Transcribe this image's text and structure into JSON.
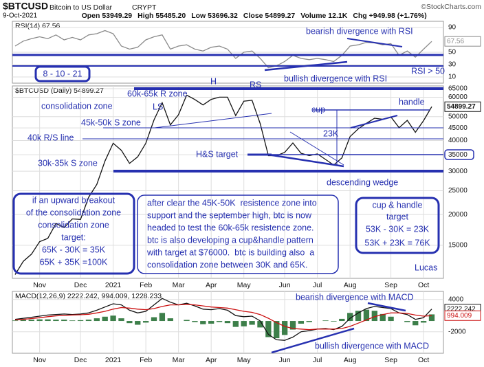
{
  "header": {
    "symbol": "$BTCUSD",
    "name": "Bitcoin to US Dollar",
    "exchange": "CRYPT",
    "source": "©StockCharts.com",
    "date": "9-Oct-2021",
    "quote": [
      "Open 53949.29",
      "High 55485.20",
      "Low 53696.32",
      "Close 54899.27",
      "Volume 12.1K",
      "Chg +949.98 (+1.76%)"
    ]
  },
  "chart_data": [
    {
      "type": "line",
      "title": "RSI(14) 67.56",
      "ylim": [
        0,
        100
      ],
      "yticks": [
        10,
        30,
        50,
        90
      ],
      "grid": true,
      "series": [
        {
          "name": "RSI(14)",
          "color": "#8a8a8a",
          "values": [
            60,
            68,
            72,
            75,
            72,
            78,
            70,
            74,
            70,
            78,
            80,
            85,
            80,
            60,
            55,
            58,
            70,
            75,
            78,
            55,
            60,
            62,
            55,
            52,
            58,
            60,
            55,
            40,
            50,
            52,
            40,
            25,
            28,
            35,
            45,
            40,
            38,
            40,
            38,
            35,
            45,
            60,
            62,
            66,
            65,
            62,
            64,
            45,
            52,
            42,
            55,
            67.56
          ]
        }
      ]
    },
    {
      "type": "line",
      "title": "$BTCUSD (Daily) 54899.27",
      "log_scale": true,
      "ylim": [
        11000,
        66700
      ],
      "yticks": [
        15000,
        20000,
        25000,
        30000,
        35000,
        40000,
        45000,
        50000,
        60000,
        65000
      ],
      "grid": true,
      "categories": [
        null,
        null,
        null,
        "Nov",
        null,
        null,
        null,
        null,
        "Dec",
        null,
        null,
        null,
        "2021",
        null,
        null,
        null,
        "Feb",
        null,
        null,
        null,
        "Mar",
        null,
        null,
        null,
        "Apr",
        null,
        null,
        null,
        "May",
        null,
        null,
        null,
        null,
        "Jun",
        null,
        null,
        null,
        "Jul",
        null,
        null,
        null,
        "Aug",
        null,
        null,
        null,
        null,
        "Sep",
        null,
        null,
        null,
        "Oct",
        null
      ],
      "series": [
        {
          "name": "$BTCUSD",
          "color": "#111111",
          "values": [
            11400,
            12900,
            13800,
            15500,
            16000,
            18400,
            17700,
            19200,
            19100,
            23500,
            26500,
            33000,
            39000,
            36500,
            32300,
            34300,
            39000,
            48500,
            57000,
            46300,
            50900,
            61200,
            58700,
            55800,
            58800,
            60000,
            60000,
            50500,
            57800,
            58300,
            46800,
            34700,
            34700,
            35800,
            39100,
            35500,
            34700,
            35300,
            33500,
            31800,
            34000,
            41500,
            44600,
            47000,
            49300,
            48800,
            49900,
            45100,
            48300,
            43200,
            48200,
            54899.27
          ]
        }
      ]
    },
    {
      "type": "line",
      "title": "MACD(12,26,9) 2222.242, 994.009, 1228.233",
      "ylim": [
        -6000,
        5500
      ],
      "yticks": [
        -2000,
        4000
      ],
      "grid": true,
      "categories": [
        null,
        null,
        null,
        "Nov",
        null,
        null,
        null,
        null,
        "Dec",
        null,
        null,
        null,
        "2021",
        null,
        null,
        null,
        "Feb",
        null,
        null,
        null,
        "Mar",
        null,
        null,
        null,
        "Apr",
        null,
        null,
        null,
        "May",
        null,
        null,
        null,
        null,
        "Jun",
        null,
        null,
        null,
        "Jul",
        null,
        null,
        null,
        "Aug",
        null,
        null,
        null,
        null,
        "Sep",
        null,
        null,
        null,
        "Oct",
        null
      ],
      "series": [
        {
          "name": "MACD",
          "color": "#111111",
          "values": [
            300,
            500,
            700,
            900,
            1100,
            1200,
            1300,
            1200,
            1300,
            1500,
            2000,
            2600,
            3200,
            3000,
            2000,
            1500,
            1800,
            3000,
            4200,
            3500,
            3000,
            3300,
            2800,
            2200,
            2100,
            2300,
            2000,
            1000,
            800,
            900,
            0,
            -2500,
            -3500,
            -3600,
            -3000,
            -2000,
            -1800,
            -1500,
            -1400,
            -1600,
            -1000,
            500,
            1500,
            2300,
            2700,
            2500,
            2300,
            1500,
            1200,
            300,
            600,
            2222.242
          ]
        },
        {
          "name": "Signal",
          "color": "#cc1111",
          "values": [
            200,
            300,
            450,
            600,
            800,
            950,
            1050,
            1100,
            1150,
            1250,
            1500,
            1800,
            2200,
            2500,
            2400,
            2200,
            2100,
            2300,
            2700,
            3000,
            3000,
            3100,
            3000,
            2800,
            2600,
            2500,
            2400,
            2100,
            1800,
            1600,
            1200,
            500,
            -300,
            -1000,
            -1400,
            -1500,
            -1600,
            -1500,
            -1500,
            -1500,
            -1400,
            -1000,
            -400,
            200,
            800,
            1200,
            1500,
            1500,
            1400,
            1100,
            900,
            994.009
          ]
        },
        {
          "name": "Histogram",
          "type": "bar",
          "color": "#3d7f4a",
          "values": [
            100,
            200,
            250,
            300,
            300,
            250,
            250,
            100,
            150,
            250,
            500,
            800,
            1000,
            500,
            -400,
            -700,
            -300,
            700,
            1500,
            500,
            0,
            200,
            -200,
            -600,
            -500,
            -200,
            -400,
            -1100,
            -1000,
            -700,
            -1200,
            -3000,
            -3200,
            -2600,
            -1600,
            -500,
            -200,
            0,
            100,
            -100,
            400,
            1500,
            1900,
            2100,
            1900,
            1300,
            800,
            0,
            -200,
            -800,
            -300,
            1228.233
          ]
        }
      ]
    }
  ],
  "annotations": {
    "notes": [
      "bearish divergence with RSI",
      "8 - 10 - 21",
      "bullish divergence with RSI",
      "RSI > 50",
      "60k-65k R zone",
      "H",
      "RS",
      "consolidation zone",
      "LS",
      "cup",
      "handle",
      "45k-50k S zone",
      "23K",
      "40k R/S line",
      "H&S target",
      "30k-35k S zone",
      "descending wedge",
      "Lucas",
      "bearish divergence with MACD",
      "bullish divergence with MACD"
    ],
    "left_box": [
      "if an upward breakout",
      "of the consolidation zone",
      "consolidation zone",
      "target:",
      "65K - 30K = 35K",
      "65K + 35K =100K"
    ],
    "center_box": [
      "after clear the 45K-50K  resistence zone into",
      "support and the september high, btc is now",
      "headed to test the 60k-65k resistence zone.",
      "btc is also developing a cup&handle pattern",
      "with target at $76000.  btc is building also  a",
      "consolidation zone between 30K and 65K."
    ],
    "right_box": [
      "cup & handle",
      "target",
      "53K - 30K = 23K",
      "53K + 23K = 76K"
    ]
  }
}
